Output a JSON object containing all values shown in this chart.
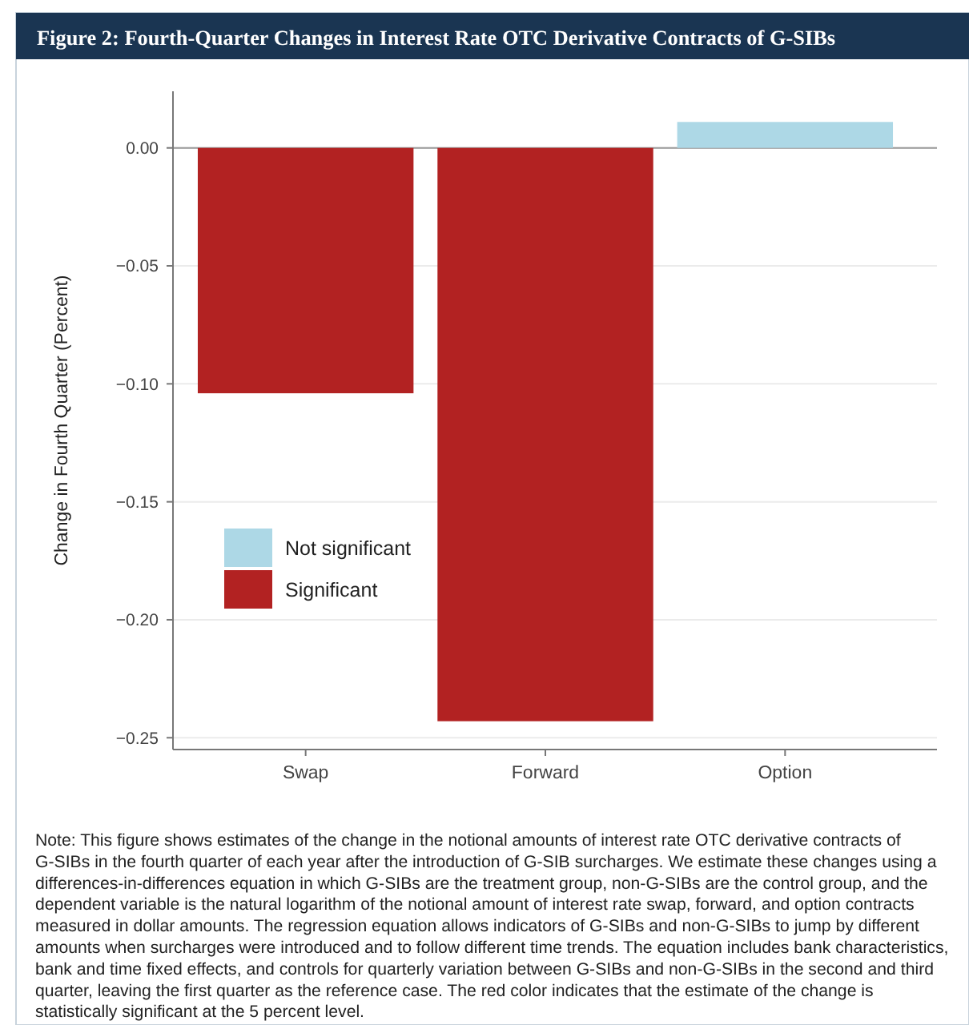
{
  "chart_data": {
    "type": "bar",
    "title": "Figure 2: Fourth-Quarter Changes in Interest Rate OTC Derivative Contracts of G-SIBs",
    "ylabel": "Change in Fourth Quarter (Percent)",
    "categories": [
      "Swap",
      "Forward",
      "Option"
    ],
    "series": [
      {
        "name": "Not significant",
        "color": "#add8e6",
        "values": [
          null,
          null,
          0.011
        ]
      },
      {
        "name": "Significant",
        "color": "#b22222",
        "values": [
          -0.104,
          -0.243,
          null
        ]
      }
    ],
    "ylim": [
      -0.255,
      0.024
    ],
    "yticks": [
      {
        "value": 0,
        "label": "0.00"
      },
      {
        "value": -0.05,
        "label": "−0.05"
      },
      {
        "value": -0.1,
        "label": "−0.10"
      },
      {
        "value": -0.15,
        "label": "−0.15"
      },
      {
        "value": -0.2,
        "label": "−0.20"
      },
      {
        "value": -0.25,
        "label": "−0.25"
      }
    ],
    "grid": "y",
    "legend": "left",
    "ref_lines": [
      {
        "axis": "y",
        "value": 0,
        "color": "#9a9a9a"
      }
    ],
    "annotations": [
      "Note: This figure shows estimates of the change in the notional amounts of interest rate OTC derivative contracts of G-SIBs in the fourth quarter of each year after the introduction of G-SIB surcharges. We estimate these changes using a differences-in-differences equation in which G-SIBs are the treatment group, non-G-SIBs are the control group, and the dependent variable is the natural logarithm of the notional amount of interest rate swap, forward, and option contracts measured in dollar amounts. The regression equation allows indicators of G-SIBs and non-G-SIBs to jump by different amounts when surcharges were introduced and to follow different time trends. The equation includes bank characteristics, bank and time fixed effects, and controls for quarterly variation between G-SIBs and non-G-SIBs in the second and third quarter, leaving the first quarter as the reference case. The red color indicates that the estimate of the change is statistically significant at the 5 percent level."
    ]
  }
}
